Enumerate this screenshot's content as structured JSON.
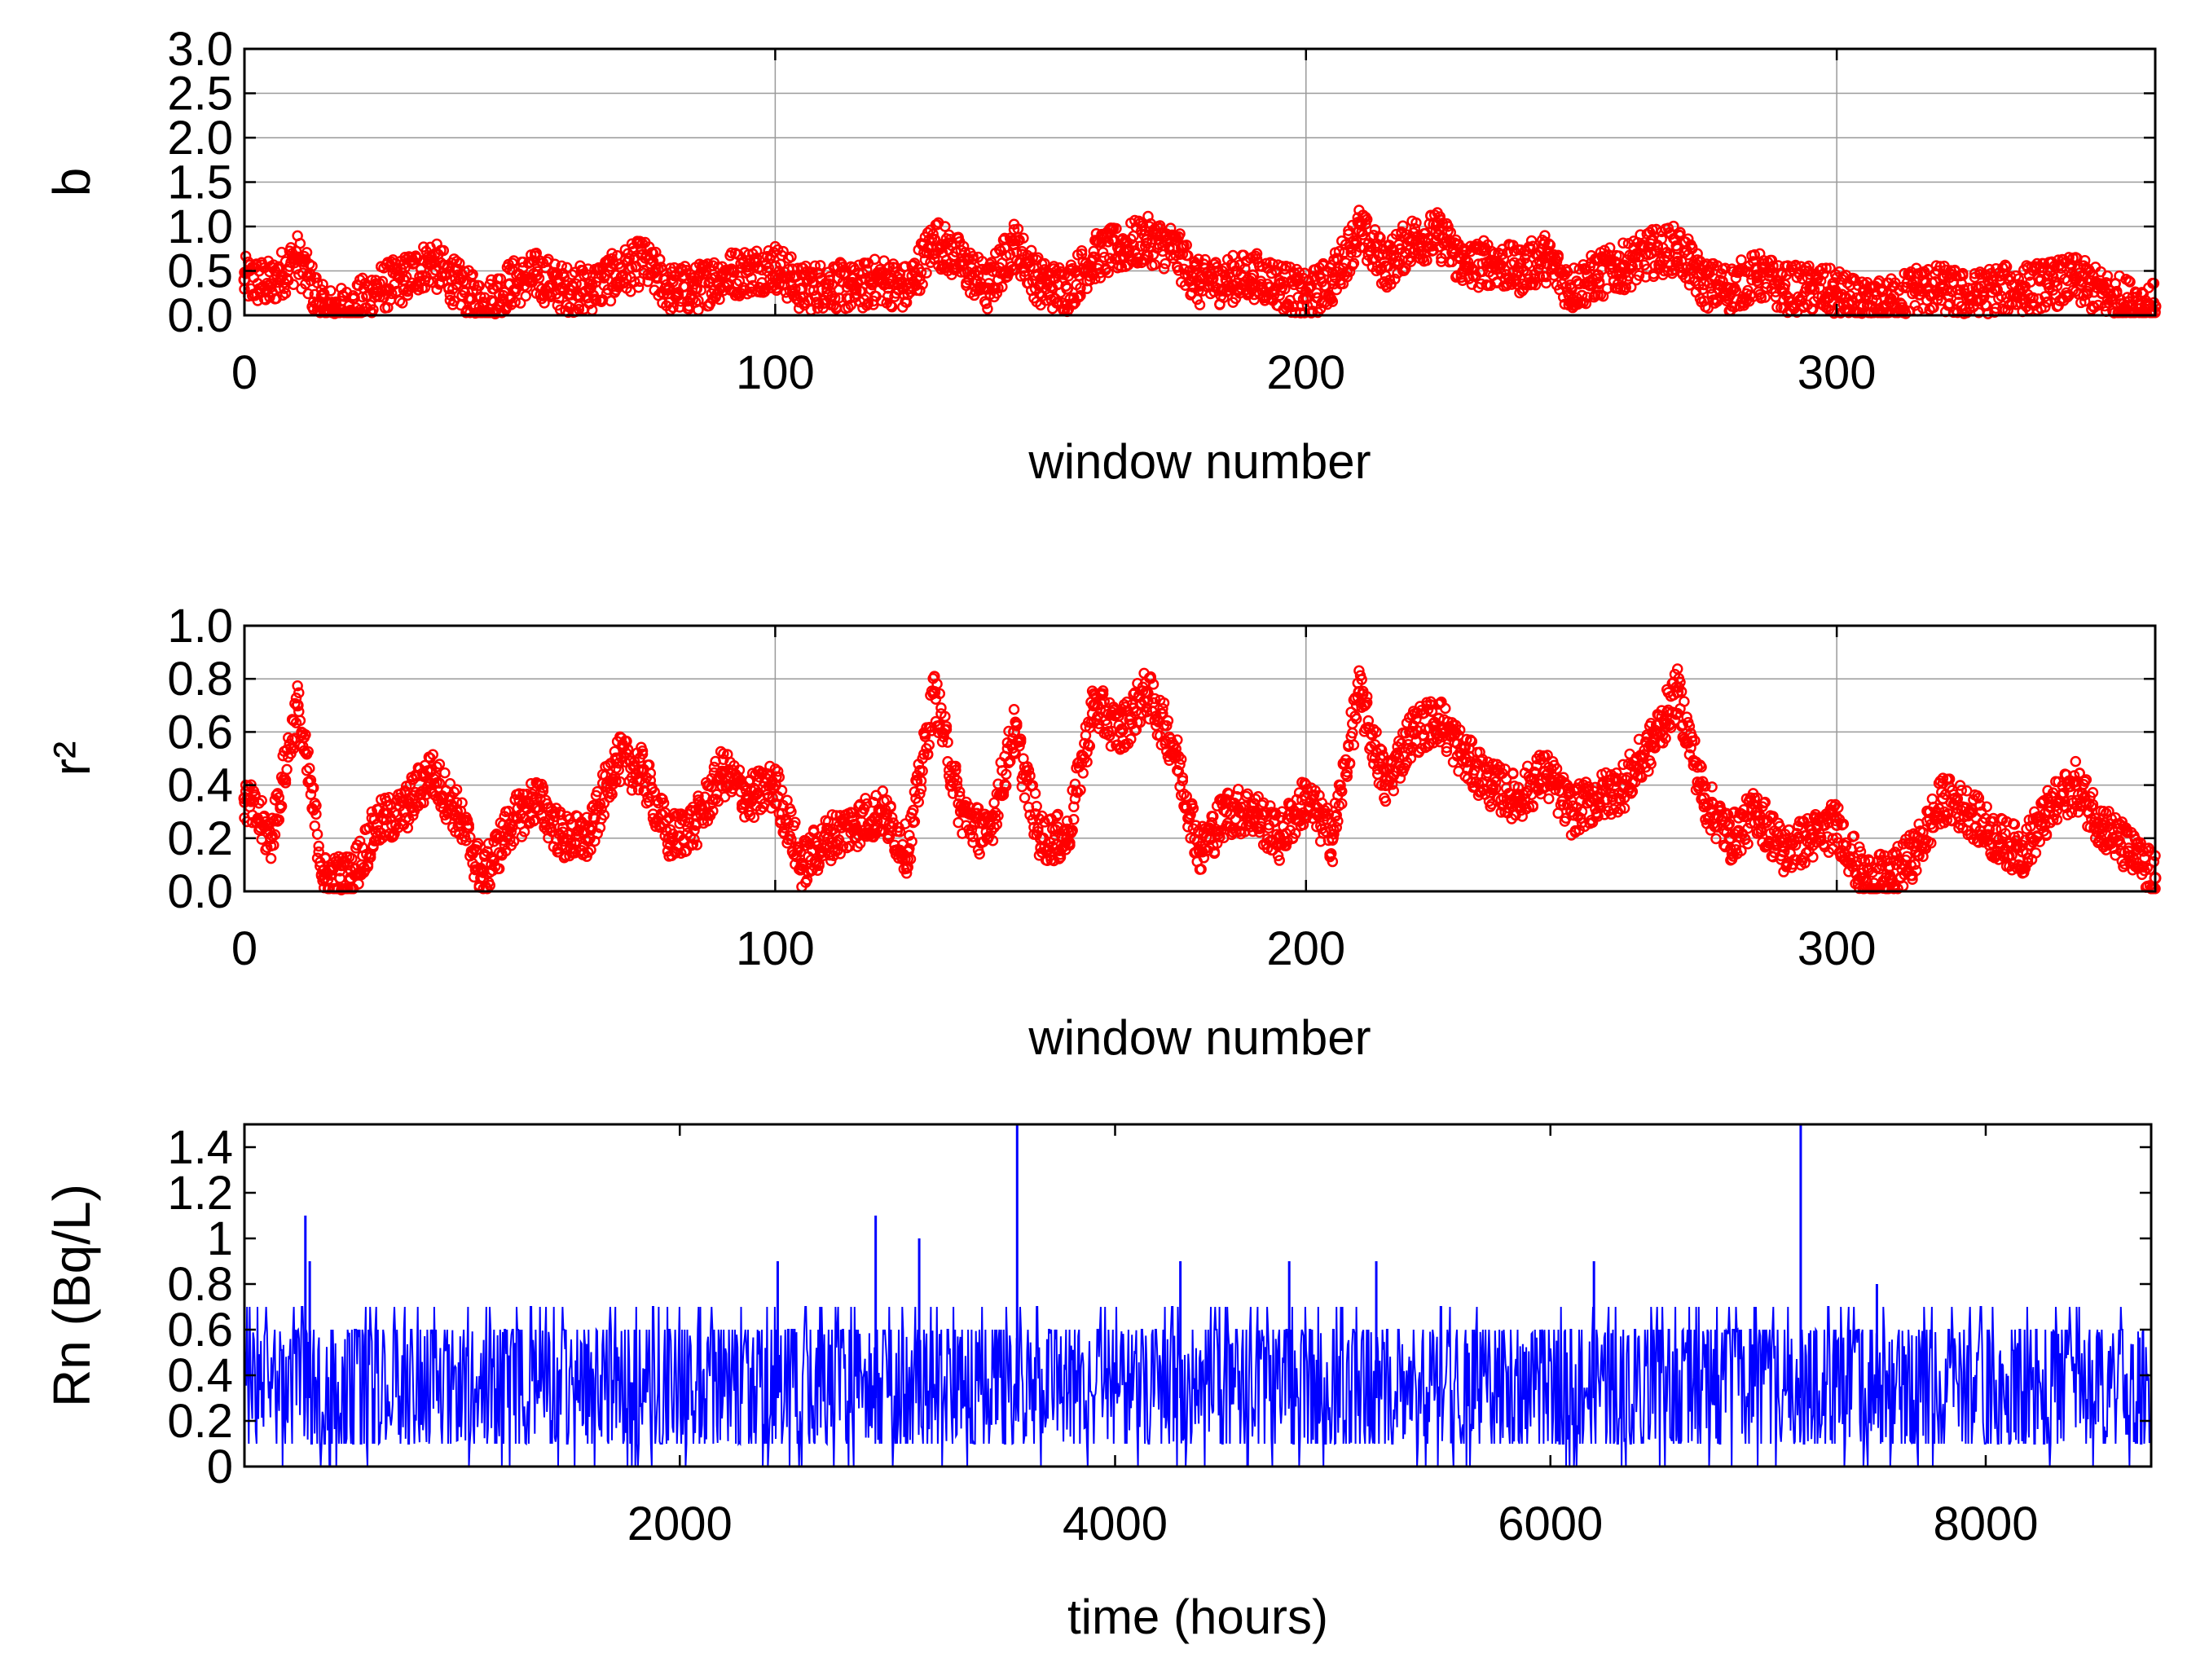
{
  "chart_data": [
    {
      "type": "scatter",
      "xlabel": "window number",
      "ylabel": "b",
      "xlim": [
        0,
        360
      ],
      "ylim": [
        0.0,
        3.0
      ],
      "xticks": [
        "0",
        "100",
        "200",
        "300"
      ],
      "yticks": [
        "0.0",
        "0.5",
        "1.0",
        "1.5",
        "2.0",
        "2.5",
        "3.0"
      ],
      "grid": true,
      "marker": "open circle",
      "series_color": "#ff0000",
      "series": [
        {
          "x": [
            0,
            5,
            10,
            15,
            20,
            25,
            30,
            35,
            40,
            45,
            50,
            55,
            60,
            65,
            70,
            75,
            80,
            85,
            90,
            95,
            100,
            105,
            110,
            115,
            120,
            125,
            130,
            135,
            140,
            145,
            150,
            155,
            160,
            165,
            170,
            175,
            180,
            185,
            190,
            195,
            200,
            205,
            210,
            215,
            220,
            225,
            230,
            235,
            240,
            245,
            250,
            255,
            260,
            265,
            270,
            275,
            280,
            285,
            290,
            295,
            300,
            305,
            310,
            315,
            320,
            325,
            330,
            335,
            340,
            345,
            350,
            355,
            360
          ],
          "values": [
            0.4,
            0.35,
            0.65,
            0.05,
            0.05,
            0.3,
            0.4,
            0.6,
            0.35,
            0.1,
            0.35,
            0.45,
            0.3,
            0.3,
            0.45,
            0.6,
            0.3,
            0.3,
            0.45,
            0.5,
            0.55,
            0.3,
            0.35,
            0.3,
            0.4,
            0.3,
            0.85,
            0.6,
            0.3,
            0.8,
            0.35,
            0.3,
            0.65,
            0.75,
            0.85,
            0.75,
            0.35,
            0.4,
            0.45,
            0.35,
            0.2,
            0.4,
            0.95,
            0.55,
            0.85,
            0.9,
            0.55,
            0.6,
            0.5,
            0.65,
            0.3,
            0.45,
            0.55,
            0.7,
            0.75,
            0.35,
            0.3,
            0.45,
            0.3,
            0.3,
            0.25,
            0.1,
            0.15,
            0.3,
            0.3,
            0.2,
            0.3,
            0.3,
            0.35,
            0.4,
            0.25,
            0.15,
            0.1
          ]
        }
      ]
    },
    {
      "type": "scatter",
      "xlabel": "window number",
      "ylabel": "r²",
      "xlim": [
        0,
        360
      ],
      "ylim": [
        0.0,
        1.0
      ],
      "xticks": [
        "0",
        "100",
        "200",
        "300"
      ],
      "yticks": [
        "0.0",
        "0.2",
        "0.4",
        "0.6",
        "0.8",
        "1.0"
      ],
      "grid": true,
      "marker": "open circle",
      "series_color": "#ff0000",
      "series": [
        {
          "x": [
            0,
            5,
            10,
            15,
            20,
            25,
            30,
            35,
            40,
            45,
            50,
            55,
            60,
            65,
            70,
            75,
            80,
            85,
            90,
            95,
            100,
            105,
            110,
            115,
            120,
            125,
            130,
            135,
            140,
            145,
            150,
            155,
            160,
            165,
            170,
            175,
            180,
            185,
            190,
            195,
            200,
            205,
            210,
            215,
            220,
            225,
            230,
            235,
            240,
            245,
            250,
            255,
            260,
            265,
            270,
            275,
            280,
            285,
            290,
            295,
            300,
            305,
            310,
            315,
            320,
            325,
            330,
            335,
            340,
            345,
            350,
            355,
            360
          ],
          "values": [
            0.35,
            0.2,
            0.7,
            0.05,
            0.05,
            0.25,
            0.3,
            0.45,
            0.3,
            0.05,
            0.25,
            0.35,
            0.2,
            0.2,
            0.5,
            0.45,
            0.2,
            0.25,
            0.45,
            0.35,
            0.4,
            0.1,
            0.2,
            0.25,
            0.3,
            0.15,
            0.75,
            0.3,
            0.2,
            0.6,
            0.2,
            0.2,
            0.7,
            0.6,
            0.75,
            0.55,
            0.15,
            0.3,
            0.3,
            0.2,
            0.35,
            0.2,
            0.75,
            0.4,
            0.6,
            0.65,
            0.5,
            0.4,
            0.35,
            0.45,
            0.3,
            0.35,
            0.4,
            0.55,
            0.75,
            0.35,
            0.2,
            0.3,
            0.15,
            0.2,
            0.25,
            0.05,
            0.05,
            0.15,
            0.35,
            0.3,
            0.2,
            0.15,
            0.3,
            0.4,
            0.25,
            0.15,
            0.05
          ]
        }
      ]
    },
    {
      "type": "line",
      "xlabel": "time (hours)",
      "ylabel": "Rn (Bq/L)",
      "xlim": [
        0,
        8760
      ],
      "ylim": [
        0,
        1.5
      ],
      "xticks": [
        "2000",
        "4000",
        "6000",
        "8000"
      ],
      "yticks": [
        "0",
        "0.2",
        "0.4",
        "0.6",
        "0.8",
        "1",
        "1.2",
        "1.4"
      ],
      "grid": false,
      "series_color": "#0000ff",
      "baseline": 0.3,
      "spikes": [
        {
          "x": 280,
          "y": 1.1
        },
        {
          "x": 300,
          "y": 0.9
        },
        {
          "x": 2450,
          "y": 0.9
        },
        {
          "x": 2900,
          "y": 1.1
        },
        {
          "x": 3100,
          "y": 1.0
        },
        {
          "x": 3550,
          "y": 1.5
        },
        {
          "x": 4300,
          "y": 0.9
        },
        {
          "x": 4800,
          "y": 0.9
        },
        {
          "x": 5200,
          "y": 0.9
        },
        {
          "x": 6200,
          "y": 0.9
        },
        {
          "x": 7150,
          "y": 1.5
        },
        {
          "x": 7500,
          "y": 0.8
        }
      ]
    }
  ]
}
